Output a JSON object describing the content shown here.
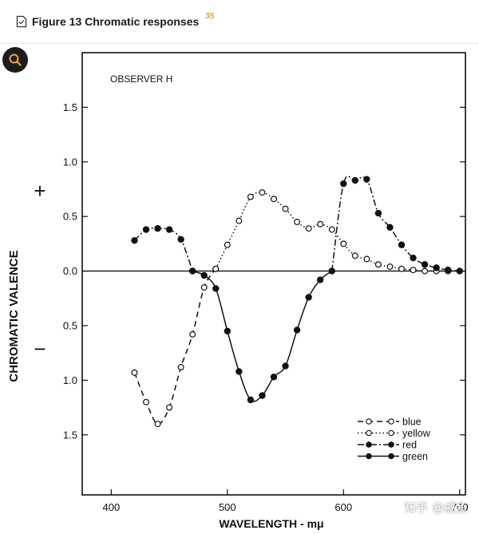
{
  "header": {
    "title": "Figure 13   Chromatic responses",
    "superscript": "35"
  },
  "watermark": "知乎 @戚鱼",
  "chart_data": {
    "type": "line",
    "annotation": "OBSERVER  H",
    "xlabel": "WAVELENGTH - mμ",
    "ylabel": "CHROMATIC  VALENCE",
    "plus_sign": "+",
    "minus_sign": "−",
    "x_ticks": [
      400,
      500,
      600,
      700
    ],
    "x_tick_labels": [
      "400",
      "500",
      "600",
      "700"
    ],
    "y_ticks": [
      1.5,
      1.0,
      0.5,
      0.0,
      -0.5,
      -1.0,
      -1.5
    ],
    "y_tick_labels": [
      "1.5",
      "1.0",
      "0.5",
      "0.0",
      "0.5",
      "1.0",
      "1.5"
    ],
    "xlim": [
      375,
      705
    ],
    "ylim": [
      -2.05,
      2.0
    ],
    "grid": false,
    "legend_position": "bottom-right",
    "series": [
      {
        "name": "blue",
        "marker": "open",
        "dash": "7 5",
        "x": [
          420,
          430,
          440,
          450,
          460,
          470,
          480,
          490
        ],
        "y": [
          -0.93,
          -1.2,
          -1.4,
          -1.25,
          -0.88,
          -0.58,
          -0.15,
          0.02
        ]
      },
      {
        "name": "yellow",
        "marker": "open",
        "dash": "1.5 3",
        "x": [
          490,
          500,
          510,
          520,
          530,
          540,
          550,
          560,
          570,
          580,
          590,
          600,
          610,
          620,
          630,
          640,
          650,
          660,
          670,
          680,
          690,
          700
        ],
        "y": [
          0.02,
          0.24,
          0.46,
          0.68,
          0.72,
          0.66,
          0.57,
          0.45,
          0.39,
          0.43,
          0.38,
          0.25,
          0.14,
          0.11,
          0.06,
          0.04,
          0.02,
          0.01,
          0.0,
          0.0,
          0.0,
          0.0
        ]
      },
      {
        "name": "red",
        "marker": "filled",
        "dash": "8 3 2 3",
        "x": [
          420,
          430,
          440,
          450,
          460,
          470,
          590,
          600,
          610,
          620,
          630,
          640,
          650,
          660,
          670,
          680,
          690,
          700
        ],
        "y": [
          0.28,
          0.38,
          0.39,
          0.38,
          0.29,
          0.0,
          0.0,
          0.8,
          0.83,
          0.84,
          0.53,
          0.4,
          0.24,
          0.12,
          0.06,
          0.03,
          0.01,
          0.0
        ]
      },
      {
        "name": "green",
        "marker": "filled",
        "dash": "",
        "x": [
          470,
          480,
          490,
          500,
          510,
          520,
          530,
          540,
          550,
          560,
          570,
          580,
          590
        ],
        "y": [
          0.0,
          -0.04,
          -0.16,
          -0.55,
          -0.92,
          -1.18,
          -1.14,
          -0.97,
          -0.87,
          -0.54,
          -0.24,
          -0.08,
          0.0
        ]
      }
    ]
  }
}
